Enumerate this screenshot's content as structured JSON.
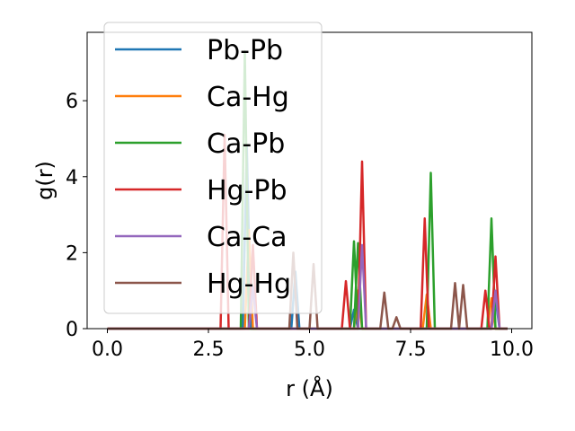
{
  "chart_data": {
    "type": "line",
    "title": "",
    "xlabel": "r (Å)",
    "ylabel": "g(r)",
    "xlim": [
      -0.5,
      10.5
    ],
    "ylim": [
      0,
      7.8
    ],
    "xticks": [
      0.0,
      2.5,
      5.0,
      7.5,
      10.0
    ],
    "xtick_labels": [
      "0.0",
      "2.5",
      "5.0",
      "7.5",
      "10.0"
    ],
    "yticks": [
      0,
      2,
      4,
      6
    ],
    "ytick_labels": [
      "0",
      "2",
      "4",
      "6"
    ],
    "grid": false,
    "legend_position": "top-left",
    "series": [
      {
        "name": "Pb-Pb",
        "color": "#1f77b4",
        "peaks": [
          [
            3.45,
            4.8
          ],
          [
            4.65,
            1.5
          ],
          [
            6.1,
            0.5
          ],
          [
            9.6,
            0.8
          ]
        ]
      },
      {
        "name": "Ca-Hg",
        "color": "#ff7f0e",
        "peaks": [
          [
            3.5,
            2.6
          ],
          [
            6.2,
            1.0
          ],
          [
            7.9,
            0.9
          ],
          [
            9.5,
            0.8
          ]
        ]
      },
      {
        "name": "Ca-Pb",
        "color": "#2ca02c",
        "peaks": [
          [
            3.4,
            7.3
          ],
          [
            6.1,
            2.3
          ],
          [
            6.2,
            2.25
          ],
          [
            8.0,
            4.1
          ],
          [
            9.5,
            2.9
          ]
        ]
      },
      {
        "name": "Hg-Pb",
        "color": "#d62728",
        "peaks": [
          [
            2.9,
            5.1
          ],
          [
            3.6,
            2.2
          ],
          [
            5.9,
            1.25
          ],
          [
            6.3,
            4.4
          ],
          [
            7.85,
            2.9
          ],
          [
            9.35,
            1.0
          ],
          [
            9.6,
            1.9
          ]
        ]
      },
      {
        "name": "Ca-Ca",
        "color": "#9467bd",
        "peaks": [
          [
            3.6,
            1.1
          ],
          [
            6.3,
            2.2
          ],
          [
            9.6,
            1.0
          ]
        ]
      },
      {
        "name": "Hg-Hg",
        "color": "#8c564b",
        "peaks": [
          [
            4.6,
            2.0
          ],
          [
            5.1,
            1.7
          ],
          [
            6.85,
            0.95
          ],
          [
            7.15,
            0.3
          ],
          [
            8.6,
            1.2
          ],
          [
            8.8,
            1.15
          ]
        ]
      }
    ]
  }
}
